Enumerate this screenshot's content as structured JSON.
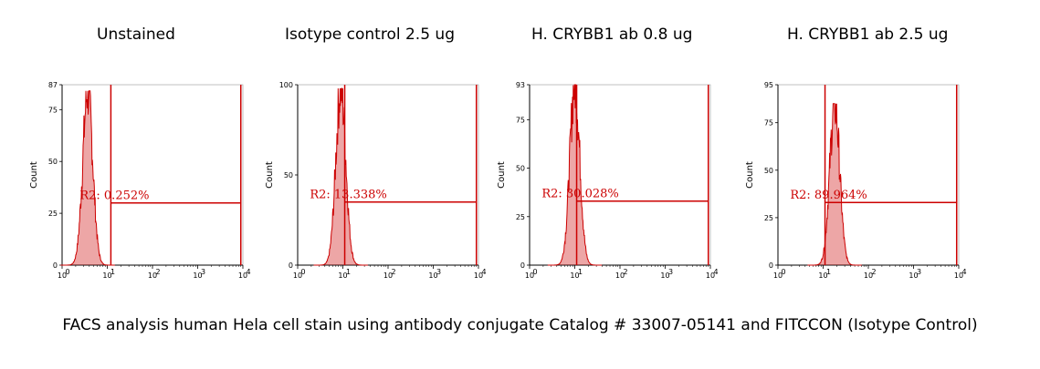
{
  "caption": "FACS analysis human Hela cell stain using antibody conjugate Catalog # 33007-05141 and FITCCON (Isotype Control)",
  "colors": {
    "histogram": "#cc0000",
    "gate": "#cc0000",
    "axis": "#000000"
  },
  "chart_data": [
    {
      "type": "histogram",
      "title": "Unstained",
      "ylabel": "Count",
      "xscale": "log",
      "xlim": [
        1,
        10000
      ],
      "ylim": [
        0,
        87
      ],
      "x_tick_labels": [
        "10",
        "10",
        "10",
        "10",
        "10"
      ],
      "y_ticks": [
        0,
        25,
        50,
        75,
        87
      ],
      "peak": {
        "center": 3.7,
        "height": 84
      },
      "gate": {
        "name": "R2",
        "label": "R2: 0.252%",
        "percent": 0.252,
        "start": 12,
        "end": 9000,
        "level": 30
      }
    },
    {
      "type": "histogram",
      "title": "Isotype control 2.5 ug",
      "ylabel": "Count",
      "xscale": "log",
      "xlim": [
        1,
        10000
      ],
      "ylim": [
        0,
        100
      ],
      "x_tick_labels": [
        "10",
        "10",
        "10",
        "10",
        "10"
      ],
      "y_ticks": [
        0,
        50,
        100
      ],
      "peak": {
        "center": 9.0,
        "height": 98
      },
      "gate": {
        "name": "R2",
        "label": "R2: 13.338%",
        "percent": 13.338,
        "start": 11,
        "end": 9000,
        "level": 35
      }
    },
    {
      "type": "histogram",
      "title": "H. CRYBB1 ab 0.8 ug",
      "ylabel": "Count",
      "xscale": "log",
      "xlim": [
        1,
        10000
      ],
      "ylim": [
        0,
        93
      ],
      "x_tick_labels": [
        "10",
        "10",
        "10",
        "10",
        "10"
      ],
      "y_ticks": [
        0,
        25,
        50,
        75,
        93
      ],
      "peak": {
        "center": 10.0,
        "height": 93
      },
      "gate": {
        "name": "R2",
        "label": "R2: 30.028%",
        "percent": 30.028,
        "start": 11,
        "end": 9000,
        "level": 33
      }
    },
    {
      "type": "histogram",
      "title": "H. CRYBB1 ab 2.5 ug",
      "ylabel": "Count",
      "xscale": "log",
      "xlim": [
        1,
        10000
      ],
      "ylim": [
        0,
        95
      ],
      "x_tick_labels": [
        "10",
        "10",
        "10",
        "10",
        "10"
      ],
      "y_ticks": [
        0,
        25,
        50,
        75,
        95
      ],
      "peak": {
        "center": 18.0,
        "height": 85
      },
      "gate": {
        "name": "R2",
        "label": "R2: 89.964%",
        "percent": 89.964,
        "start": 11,
        "end": 9000,
        "level": 33
      }
    }
  ]
}
